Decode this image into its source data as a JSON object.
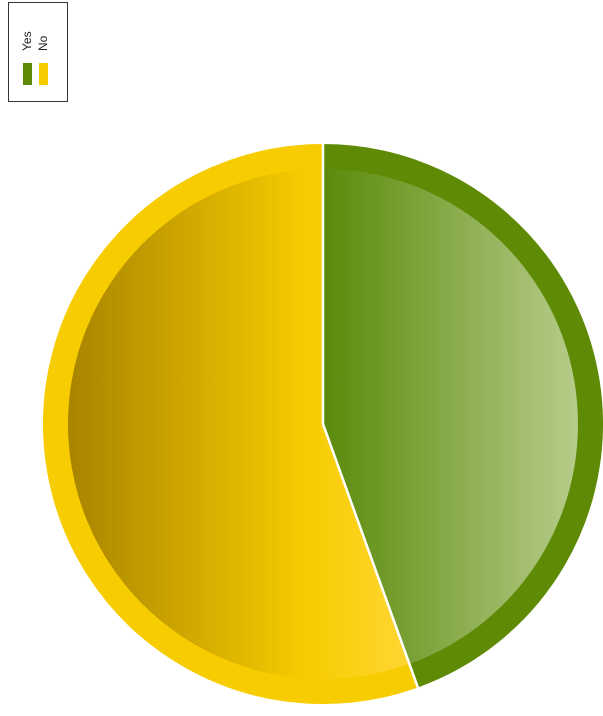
{
  "chart_data": {
    "type": "pie",
    "categories": [
      "Yes",
      "No"
    ],
    "values": [
      44.5,
      55.5
    ],
    "colors": {
      "Yes": "#5f8a05",
      "No": "#f7cc00"
    },
    "legend": {
      "placement": "top-left",
      "entries": [
        "Yes",
        "No"
      ]
    },
    "title": ""
  }
}
